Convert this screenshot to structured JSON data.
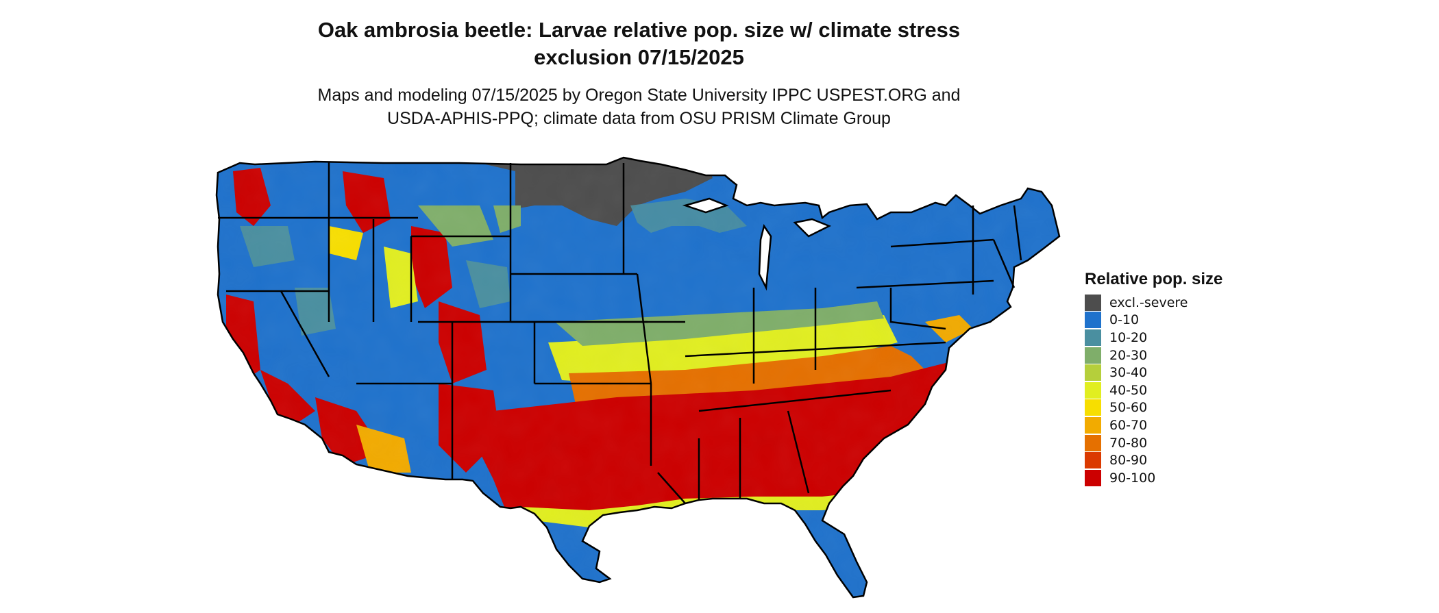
{
  "title_line1": "Oak ambrosia beetle: Larvae relative pop. size w/ climate stress",
  "title_line2": "exclusion 07/15/2025",
  "subtitle_line1": "Maps and modeling 07/15/2025 by Oregon State University IPPC USPEST.ORG and",
  "subtitle_line2": "USDA-APHIS-PPQ; climate data from OSU PRISM Climate Group",
  "legend": {
    "title": "Relative pop. size",
    "items": [
      {
        "label": "excl.-severe",
        "color": "#4d4d4d"
      },
      {
        "label": "0-10",
        "color": "#1f72cc"
      },
      {
        "label": "10-20",
        "color": "#4a8fa0"
      },
      {
        "label": "20-30",
        "color": "#7fae6a"
      },
      {
        "label": "30-40",
        "color": "#b5cf3b"
      },
      {
        "label": "40-50",
        "color": "#e1ee20"
      },
      {
        "label": "50-60",
        "color": "#f7de00"
      },
      {
        "label": "60-70",
        "color": "#f2ab00"
      },
      {
        "label": "70-80",
        "color": "#e57000"
      },
      {
        "label": "80-90",
        "color": "#db3a00"
      },
      {
        "label": "90-100",
        "color": "#cc0000"
      }
    ]
  }
}
